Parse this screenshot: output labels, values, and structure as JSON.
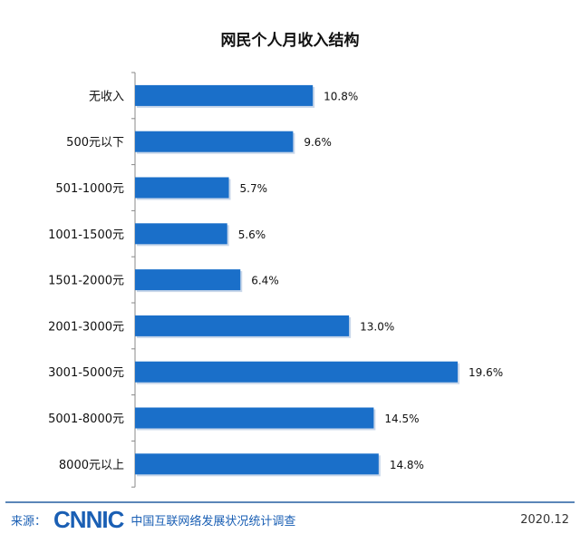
{
  "chart_data": {
    "type": "bar",
    "orientation": "horizontal",
    "title": "网民个人月收入结构",
    "categories": [
      "无收入",
      "500元以下",
      "501-1000元",
      "1001-1500元",
      "1501-2000元",
      "2001-3000元",
      "3001-5000元",
      "5001-8000元",
      "8000元以上"
    ],
    "values": [
      10.8,
      9.6,
      5.7,
      5.6,
      6.4,
      13.0,
      19.6,
      14.5,
      14.8
    ],
    "labels": [
      "10.8%",
      "9.6%",
      "5.7%",
      "5.6%",
      "6.4%",
      "13.0%",
      "19.6%",
      "14.5%",
      "14.8%"
    ],
    "xlabel": "",
    "ylabel": "",
    "xlim": [
      0,
      20
    ],
    "grid": false,
    "bar_color": "#1a6fc9"
  },
  "footer": {
    "source_label": "来源：",
    "logo": "CNNIC",
    "source_org": "中国互联网络发展状况统计调查",
    "date": "2020.12"
  }
}
